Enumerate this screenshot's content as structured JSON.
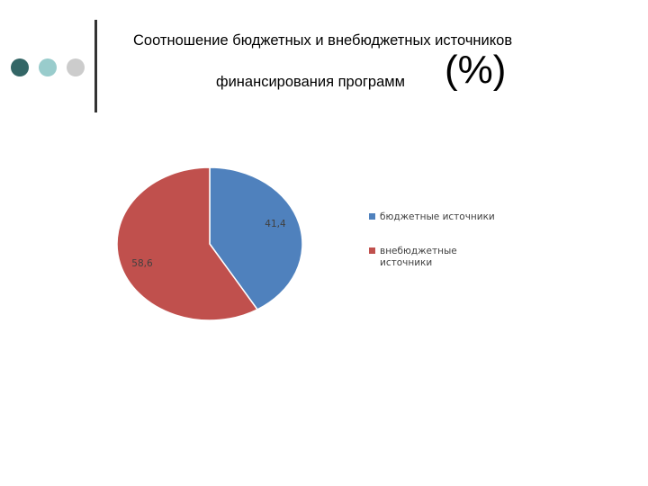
{
  "decoration": {
    "dot_colors": [
      "#336666",
      "#99cccc",
      "#cccccc"
    ],
    "line_color": "#333333"
  },
  "title": {
    "line1": "Соотношение бюджетных и внебюджетных источников",
    "line2": "финансирования программ",
    "unit": "(%)"
  },
  "chart_data": {
    "type": "pie",
    "title": "Соотношение бюджетных и внебюджетных источников финансирования программ (%)",
    "slices": [
      {
        "label": "бюджетные источники",
        "legend_lines": [
          "бюджетные источники"
        ],
        "value": 41.4,
        "value_label": "41,4",
        "color": "#4f81bd"
      },
      {
        "label": "внебюджетные источники",
        "legend_lines": [
          "внебюджетные",
          "источники"
        ],
        "value": 58.6,
        "value_label": "58,6",
        "color": "#c0504d"
      }
    ],
    "start_angle": "12 o'clock",
    "direction": "clockwise",
    "legend_position": "right"
  }
}
